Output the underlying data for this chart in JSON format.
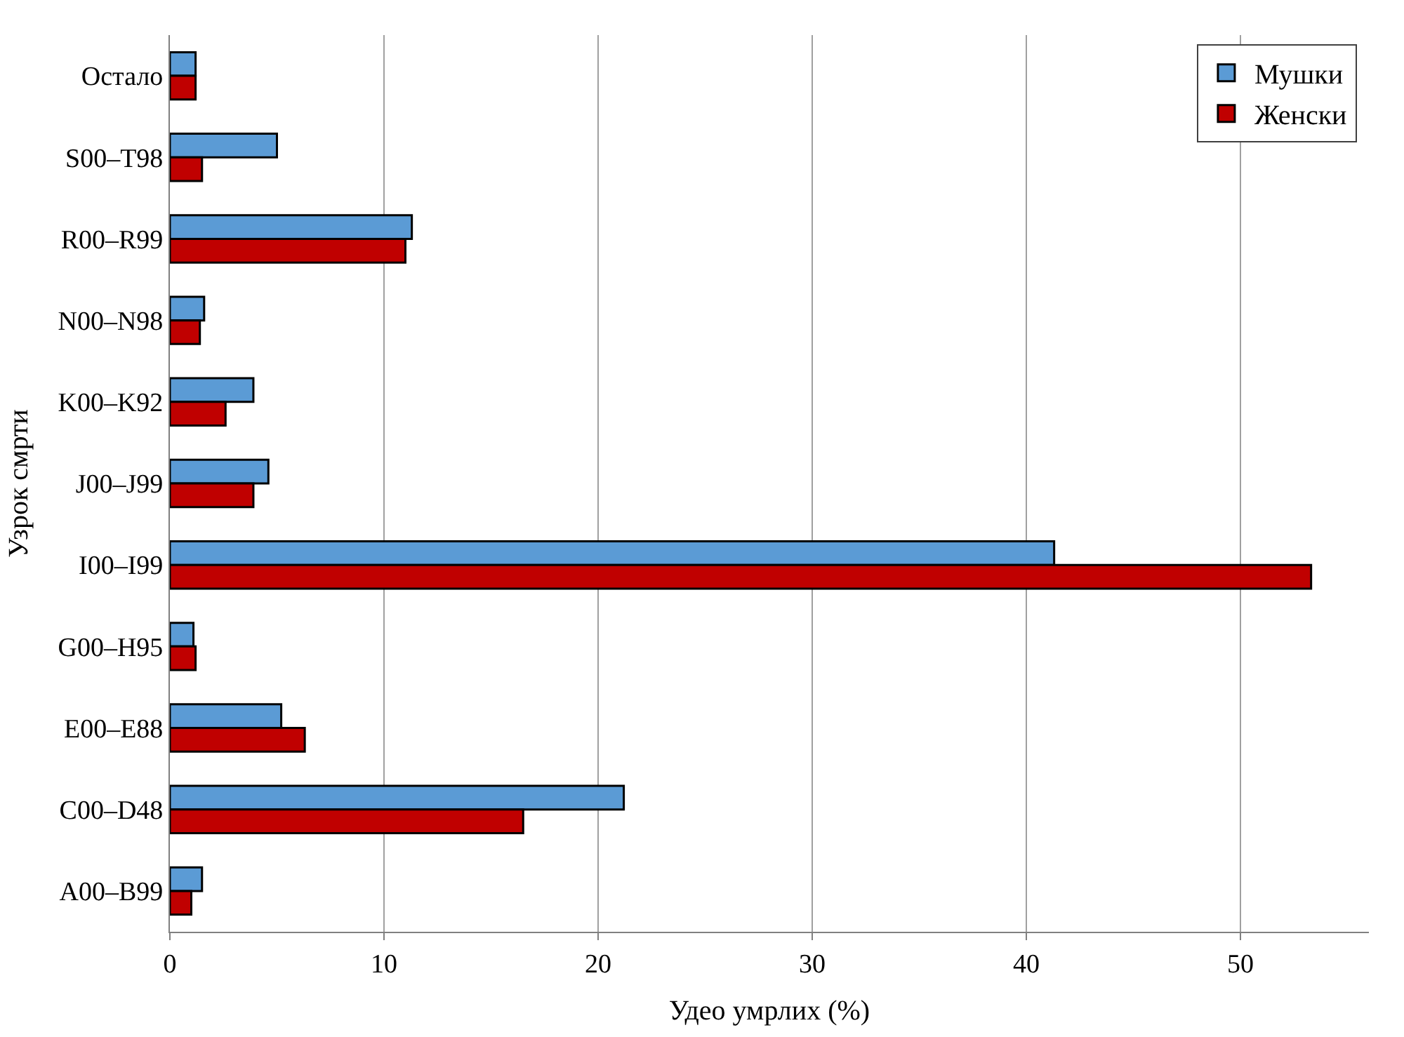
{
  "chart_data": {
    "type": "bar",
    "orientation": "horizontal",
    "xlabel": "Удео умрлих (%)",
    "ylabel": "Узрок смрти",
    "categories": [
      "Остало",
      "S00–T98",
      "R00–R99",
      "N00–N98",
      "K00–K92",
      "J00–J99",
      "I00–I99",
      "G00–H95",
      "E00–E88",
      "C00–D48",
      "A00–B99"
    ],
    "series": [
      {
        "name": "Мушки",
        "color": "#5b9bd5",
        "values": [
          1.2,
          5.0,
          11.3,
          1.6,
          3.9,
          4.6,
          41.3,
          1.1,
          5.2,
          21.2,
          1.5
        ]
      },
      {
        "name": "Женски",
        "color": "#c00000",
        "values": [
          1.2,
          1.5,
          11.0,
          1.4,
          2.6,
          3.9,
          53.3,
          1.2,
          6.3,
          16.5,
          1.0
        ]
      }
    ],
    "xlim": [
      0,
      56
    ],
    "xticks": [
      0,
      10,
      20,
      30,
      40,
      50
    ],
    "grid": "x",
    "legend": "top right"
  }
}
